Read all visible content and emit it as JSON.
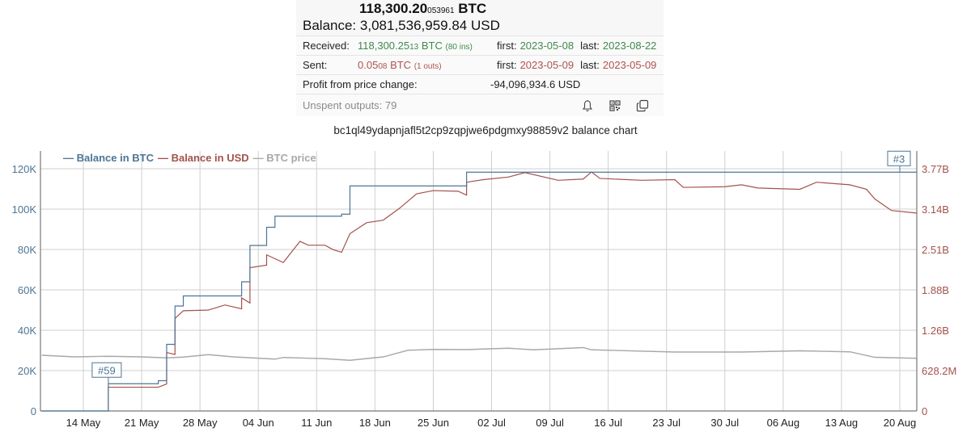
{
  "summary": {
    "balance_btc_main": "118,300.20",
    "balance_btc_small": "053961",
    "balance_btc_unit": "BTC",
    "balance_usd_label": "Balance:",
    "balance_usd_value": "3,081,536,959.84 USD",
    "received": {
      "label": "Received:",
      "amount_main": "118,300.25",
      "amount_small": "13",
      "unit": "BTC",
      "count": "(80 ins)",
      "first_label": "first:",
      "first_date": "2023-05-08",
      "last_label": "last:",
      "last_date": "2023-08-22"
    },
    "sent": {
      "label": "Sent:",
      "amount_main": "0.05",
      "amount_small": "08",
      "unit": "BTC",
      "count": "(1 outs)",
      "first_label": "first:",
      "first_date": "2023-05-09",
      "last_label": "last:",
      "last_date": "2023-05-09"
    },
    "profit": {
      "label": "Profit from price change:",
      "value": "-94,096,934.6 USD"
    },
    "unspent": {
      "label": "Unspent outputs: 79"
    },
    "icons": [
      "bell-icon",
      "qr-code-icon",
      "copy-icon"
    ]
  },
  "chart_title": "bc1ql49ydapnjafl5t2cp9zqpjwe6pdgmxy98859v2 balance chart",
  "colors": {
    "btc": "#4e7594",
    "usd": "#a3524c",
    "price": "#a8a8a8",
    "grid": "#cfcfcf",
    "green": "#3f8a4b",
    "red": "#b0534e"
  },
  "chart_data": {
    "type": "line",
    "title": "bc1ql49ydapnjafl5t2cp9zqpjwe6pdgmxy98859v2 balance chart",
    "legend": [
      "Balance in BTC",
      "Balance in USD",
      "BTC price"
    ],
    "legend_position": "top-left",
    "grid": true,
    "x_ticks": [
      "14 May",
      "21 May",
      "28 May",
      "04 Jun",
      "11 Jun",
      "18 Jun",
      "25 Jun",
      "02 Jul",
      "09 Jul",
      "16 Jul",
      "23 Jul",
      "30 Jul",
      "06 Aug",
      "13 Aug",
      "20 Aug"
    ],
    "y_left_ticks": [
      "0",
      "20K",
      "40K",
      "60K",
      "80K",
      "100K",
      "120K"
    ],
    "y_left_range": [
      0,
      120000
    ],
    "y_right_ticks": [
      "0",
      "628.2M",
      "1.26B",
      "1.88B",
      "2.51B",
      "3.14B",
      "3.77B"
    ],
    "y_right_range": [
      0,
      3770000000
    ],
    "annotations": [
      {
        "label": "#59",
        "date": "2023-05-17",
        "series": "Balance in BTC"
      },
      {
        "label": "#3",
        "date": "2023-08-20",
        "series": "Balance in BTC"
      }
    ],
    "series": [
      {
        "name": "Balance in BTC",
        "axis": "left",
        "step": true,
        "points": [
          [
            "2023-05-09",
            0
          ],
          [
            "2023-05-17",
            13500
          ],
          [
            "2023-05-23",
            15000
          ],
          [
            "2023-05-24",
            33000
          ],
          [
            "2023-05-25",
            52000
          ],
          [
            "2023-05-26",
            57000
          ],
          [
            "2023-06-02",
            64000
          ],
          [
            "2023-06-03",
            82000
          ],
          [
            "2023-06-05",
            91000
          ],
          [
            "2023-06-06",
            96500
          ],
          [
            "2023-06-14",
            97500
          ],
          [
            "2023-06-15",
            111500
          ],
          [
            "2023-06-29",
            118300
          ],
          [
            "2023-08-22",
            118300
          ]
        ]
      },
      {
        "name": "Balance in USD",
        "axis": "right",
        "points": [
          [
            "2023-05-17",
            0
          ],
          [
            "2023-05-17",
            370000000
          ],
          [
            "2023-05-23",
            370000000
          ],
          [
            "2023-05-24",
            420000000
          ],
          [
            "2023-05-24",
            910000000
          ],
          [
            "2023-05-25",
            880000000
          ],
          [
            "2023-05-25",
            1440000000
          ],
          [
            "2023-05-26",
            1560000000
          ],
          [
            "2023-05-29",
            1570000000
          ],
          [
            "2023-05-31",
            1650000000
          ],
          [
            "2023-06-02",
            1590000000
          ],
          [
            "2023-06-02",
            1760000000
          ],
          [
            "2023-06-03",
            1680000000
          ],
          [
            "2023-06-03",
            2230000000
          ],
          [
            "2023-06-05",
            2270000000
          ],
          [
            "2023-06-05",
            2430000000
          ],
          [
            "2023-06-07",
            2310000000
          ],
          [
            "2023-06-09",
            2640000000
          ],
          [
            "2023-06-10",
            2580000000
          ],
          [
            "2023-06-12",
            2580000000
          ],
          [
            "2023-06-13",
            2510000000
          ],
          [
            "2023-06-14",
            2470000000
          ],
          [
            "2023-06-15",
            2760000000
          ],
          [
            "2023-06-17",
            2930000000
          ],
          [
            "2023-06-19",
            2970000000
          ],
          [
            "2023-06-21",
            3160000000
          ],
          [
            "2023-06-23",
            3380000000
          ],
          [
            "2023-06-25",
            3430000000
          ],
          [
            "2023-06-28",
            3420000000
          ],
          [
            "2023-06-29",
            3360000000
          ],
          [
            "2023-06-29",
            3560000000
          ],
          [
            "2023-07-01",
            3600000000
          ],
          [
            "2023-07-04",
            3640000000
          ],
          [
            "2023-07-06",
            3710000000
          ],
          [
            "2023-07-10",
            3590000000
          ],
          [
            "2023-07-13",
            3610000000
          ],
          [
            "2023-07-14",
            3720000000
          ],
          [
            "2023-07-15",
            3620000000
          ],
          [
            "2023-07-20",
            3590000000
          ],
          [
            "2023-07-24",
            3600000000
          ],
          [
            "2023-07-25",
            3480000000
          ],
          [
            "2023-07-30",
            3490000000
          ],
          [
            "2023-08-01",
            3520000000
          ],
          [
            "2023-08-03",
            3470000000
          ],
          [
            "2023-08-08",
            3450000000
          ],
          [
            "2023-08-10",
            3560000000
          ],
          [
            "2023-08-14",
            3520000000
          ],
          [
            "2023-08-16",
            3450000000
          ],
          [
            "2023-08-17",
            3300000000
          ],
          [
            "2023-08-19",
            3120000000
          ],
          [
            "2023-08-22",
            3080000000
          ]
        ]
      },
      {
        "name": "BTC price",
        "axis": "left",
        "points": [
          [
            "2023-05-09",
            27600
          ],
          [
            "2023-05-13",
            26800
          ],
          [
            "2023-05-17",
            27100
          ],
          [
            "2023-05-21",
            26800
          ],
          [
            "2023-05-24",
            26300
          ],
          [
            "2023-05-26",
            26700
          ],
          [
            "2023-05-29",
            27900
          ],
          [
            "2023-06-01",
            26800
          ],
          [
            "2023-06-06",
            25700
          ],
          [
            "2023-06-07",
            26500
          ],
          [
            "2023-06-12",
            25900
          ],
          [
            "2023-06-15",
            25100
          ],
          [
            "2023-06-19",
            26800
          ],
          [
            "2023-06-22",
            30100
          ],
          [
            "2023-06-25",
            30500
          ],
          [
            "2023-06-29",
            30400
          ],
          [
            "2023-07-04",
            31100
          ],
          [
            "2023-07-07",
            30300
          ],
          [
            "2023-07-13",
            31400
          ],
          [
            "2023-07-14",
            30300
          ],
          [
            "2023-07-24",
            29200
          ],
          [
            "2023-08-01",
            29200
          ],
          [
            "2023-08-08",
            29800
          ],
          [
            "2023-08-14",
            29300
          ],
          [
            "2023-08-17",
            26600
          ],
          [
            "2023-08-22",
            26100
          ]
        ]
      }
    ]
  }
}
